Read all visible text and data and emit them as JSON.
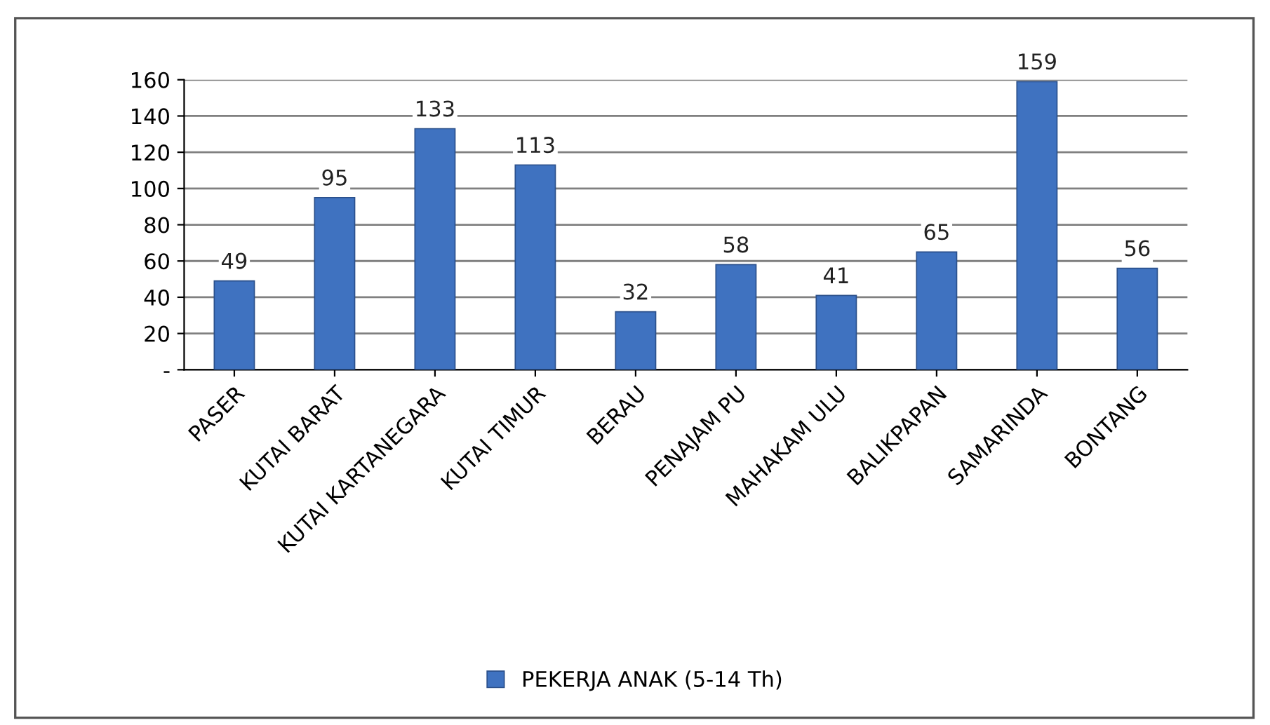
{
  "chart_data": {
    "type": "bar",
    "categories": [
      "PASER",
      "KUTAI BARAT",
      "KUTAI KARTANEGARA",
      "KUTAI TIMUR",
      "BERAU",
      "PENAJAM PU",
      "MAHAKAM ULU",
      "BALIKPAPAN",
      "SAMARINDA",
      "BONTANG"
    ],
    "series": [
      {
        "name": "PEKERJA ANAK (5-14 Th)",
        "color": "#3f72c0",
        "values": [
          49,
          95,
          133,
          113,
          32,
          58,
          41,
          65,
          159,
          56
        ]
      }
    ],
    "ylim": [
      0,
      160
    ],
    "yticks": [
      {
        "value": 0,
        "label": "-"
      },
      20,
      40,
      60,
      80,
      100,
      120,
      140,
      160
    ],
    "grid": "y",
    "legend": "bottom",
    "data_labels": true
  }
}
